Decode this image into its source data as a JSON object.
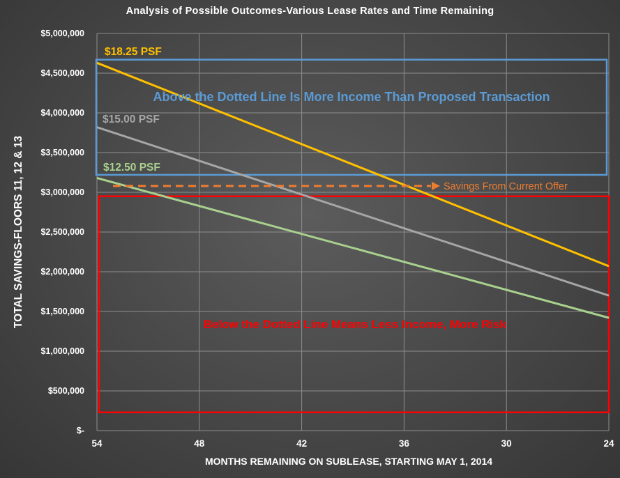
{
  "chart_data": {
    "type": "line",
    "title": "Analysis of Possible Outcomes-Various Lease Rates and Time Remaining",
    "xlabel": "MONTHS REMAINING ON SUBLEASE, STARTING MAY 1, 2014",
    "ylabel": "TOTAL SAVINGS-FLOORS 11, 12 & 13",
    "x_ticks": [
      "54",
      "48",
      "42",
      "36",
      "30",
      "24"
    ],
    "y_ticks": [
      "$-",
      "$500,000",
      "$1,000,000",
      "$1,500,000",
      "$2,000,000",
      "$2,500,000",
      "$3,000,000",
      "$3,500,000",
      "$4,000,000",
      "$4,500,000",
      "$5,000,000"
    ],
    "xlim": [
      54,
      24
    ],
    "ylim": [
      0,
      5000000
    ],
    "grid": true,
    "series": [
      {
        "name": "$18.25 PSF",
        "color": "#ffc000",
        "x": [
          54,
          24
        ],
        "values": [
          4630000,
          2070000
        ]
      },
      {
        "name": "$15.00 PSF",
        "color": "#a6a6a6",
        "x": [
          54,
          24
        ],
        "values": [
          3820000,
          1700000
        ]
      },
      {
        "name": "$12.50 PSF",
        "color": "#a9d18e",
        "x": [
          54,
          24
        ],
        "values": [
          3180000,
          1420000
        ]
      }
    ],
    "reference_line": {
      "value": 3080000,
      "label": "Savings From Current Offer",
      "color": "#ed7d31",
      "style": "dashed arrow"
    },
    "annotations": {
      "above": {
        "text": "Above the Dotted Line Is More Income Than Proposed Transaction",
        "color": "#5b9bd5"
      },
      "below": {
        "text": "Below the Dotted Line Means Less Income, More Risk",
        "color": "#ff0000"
      }
    }
  }
}
